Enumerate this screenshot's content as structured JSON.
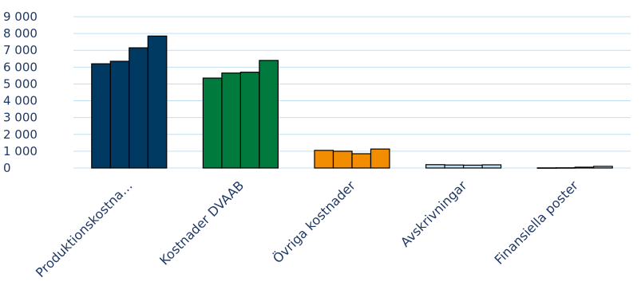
{
  "chart_data": {
    "type": "bar",
    "title": "",
    "xlabel": "",
    "ylabel": "",
    "ylim": [
      0,
      9000
    ],
    "yticks": [
      0,
      1000,
      2000,
      3000,
      4000,
      5000,
      6000,
      7000,
      8000,
      9000
    ],
    "ytick_labels": [
      "0",
      "1 000",
      "2 000",
      "3 000",
      "4 000",
      "5 000",
      "6 000",
      "7 000",
      "8 000",
      "9 000"
    ],
    "grid": true,
    "legend": "none",
    "categories": [
      "Produktionskostna…",
      "Kostnader DVAAB",
      "Övriga kostnader",
      "Avskrivningar",
      "Finansiella poster"
    ],
    "category_colors": [
      "#003a63",
      "#007a3d",
      "#f28c00",
      "#bfe0f2",
      "#bfe0f2"
    ],
    "series": [
      {
        "values": [
          6200,
          5350,
          1050,
          200,
          10
        ]
      },
      {
        "values": [
          6350,
          5650,
          1000,
          180,
          15
        ]
      },
      {
        "values": [
          7150,
          5700,
          850,
          170,
          50
        ]
      },
      {
        "values": [
          7850,
          6400,
          1130,
          190,
          100
        ]
      }
    ]
  }
}
